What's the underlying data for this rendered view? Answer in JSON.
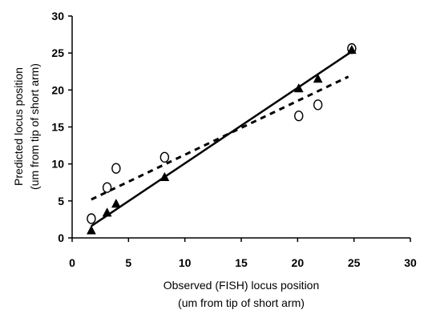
{
  "chart_data": {
    "type": "scatter",
    "title": "",
    "xlabel": [
      "Observed  (FISH) locus position",
      "(um from tip of short arm)"
    ],
    "ylabel": [
      "Predicted locus position",
      "(um from tip of short arm)"
    ],
    "xlim": [
      0,
      30
    ],
    "ylim": [
      0,
      30
    ],
    "xticks": [
      0,
      5,
      10,
      15,
      20,
      25,
      30
    ],
    "yticks": [
      0,
      5,
      10,
      15,
      20,
      25,
      30
    ],
    "grid": false,
    "legend": "none",
    "series": [
      {
        "marker": "open-circle",
        "trendline": "dashed",
        "points": [
          [
            1.7,
            2.6
          ],
          [
            3.1,
            6.8
          ],
          [
            3.9,
            9.4
          ],
          [
            8.2,
            10.9
          ],
          [
            20.1,
            16.5
          ],
          [
            21.8,
            18.0
          ],
          [
            24.8,
            25.6
          ]
        ],
        "fit": [
          [
            1.7,
            5.2
          ],
          [
            24.5,
            21.8
          ]
        ]
      },
      {
        "marker": "filled-triangle",
        "trendline": "solid",
        "points": [
          [
            1.7,
            1.0
          ],
          [
            3.1,
            3.4
          ],
          [
            3.9,
            4.6
          ],
          [
            8.2,
            8.2
          ],
          [
            20.1,
            20.2
          ],
          [
            21.8,
            21.5
          ],
          [
            24.8,
            25.4
          ]
        ],
        "fit": [
          [
            1.7,
            1.6
          ],
          [
            24.8,
            25.2
          ]
        ]
      }
    ]
  }
}
